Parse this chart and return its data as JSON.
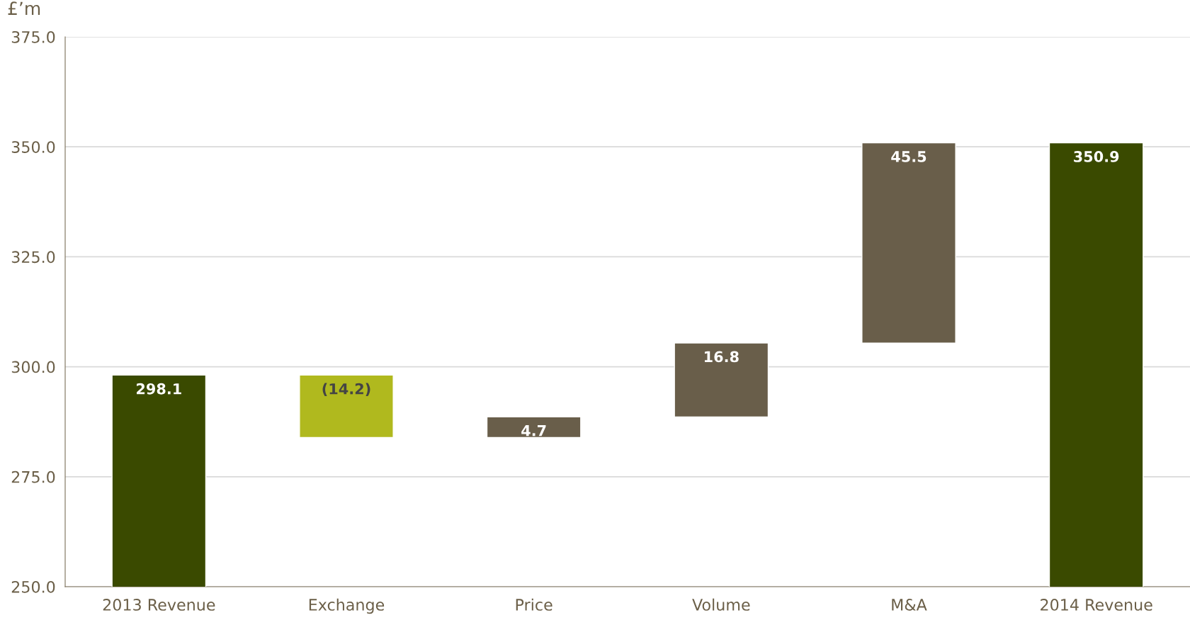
{
  "chart_data": {
    "type": "bar",
    "ylabel": "£’m",
    "categories": [
      "2013 Revenue",
      "Exchange",
      "Price",
      "Volume",
      "M&A",
      "2014 Revenue"
    ],
    "values": [
      298.1,
      -14.2,
      4.7,
      16.8,
      45.5,
      350.9
    ],
    "base": [
      null,
      298.1,
      283.9,
      288.6,
      305.4,
      null
    ],
    "colors": [
      "#3a4a00",
      "#b0b91e",
      "#695e4a",
      "#695e4a",
      "#695e4a",
      "#3a4a00"
    ],
    "value_labels": [
      "298.1",
      "(14.2)",
      "4.7",
      "16.8",
      "45.5",
      "350.9"
    ],
    "ylim": [
      250,
      375
    ],
    "yticks": [
      {
        "value": 250,
        "label": "250.0"
      },
      {
        "value": 275,
        "label": "275.0"
      },
      {
        "value": 300,
        "label": "300.0"
      },
      {
        "value": 325,
        "label": "325.0"
      },
      {
        "value": 350,
        "label": "350.0"
      },
      {
        "value": 375,
        "label": "375.0"
      }
    ],
    "grid": "y"
  }
}
